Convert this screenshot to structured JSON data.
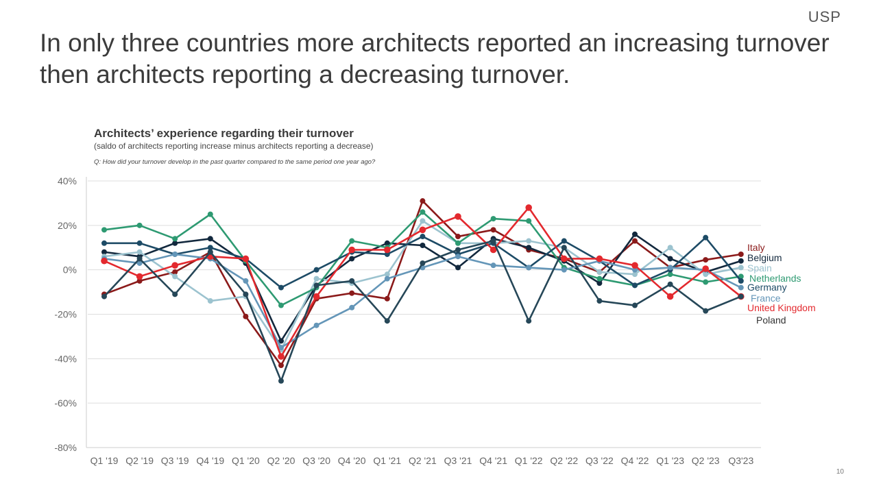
{
  "logo": "USP",
  "headline": "In only three countries more architects reported an increasing turnover then architects reporting a decreasing turnover.",
  "page_number": "10",
  "chart_data": {
    "type": "line",
    "title": "Architects’ experience regarding their turnover",
    "subtitle": "(saldo of architects reporting increase minus architects reporting a decrease)",
    "question": "Q: How did your turnover develop in the past quarter compared to the same period one year ago?",
    "categories": [
      "Q1 '19",
      "Q2 '19",
      "Q3 '19",
      "Q4 '19",
      "Q1 '20",
      "Q2 '20",
      "Q3 '20",
      "Q4 '20",
      "Q1 '21",
      "Q2 '21",
      "Q3 '21",
      "Q4 '21",
      "Q1 '22",
      "Q2 '22",
      "Q3 '22",
      "Q4 '22",
      "Q1 '23",
      "Q2 '23",
      "Q3'23"
    ],
    "ylim": [
      -80,
      40
    ],
    "yticks": [
      40,
      20,
      0,
      -20,
      -40,
      -60,
      -80
    ],
    "ytick_labels": [
      "40%",
      "20%",
      "0%",
      "-20%",
      "-40%",
      "-60%",
      "-80%"
    ],
    "grid": "horizontal",
    "legend": "right, labels at line ends",
    "series": [
      {
        "name": "Italy",
        "color": "#8b1a1a",
        "values": [
          -11,
          -5,
          -1,
          8,
          -21,
          -43,
          -13,
          -10.5,
          -13,
          31,
          15,
          18,
          9,
          5,
          -1,
          13,
          1,
          4.5,
          7
        ]
      },
      {
        "name": "Belgium",
        "color": "#12283d",
        "values": [
          8,
          6,
          12,
          14,
          3,
          -32,
          -7,
          5,
          12,
          11,
          1,
          14,
          10,
          4,
          -6,
          16,
          5,
          -1,
          4
        ]
      },
      {
        "name": "Spain",
        "color": "#9cc3cf",
        "values": [
          6,
          8,
          -3,
          -14,
          -12,
          -36,
          -4,
          -6,
          -2,
          22,
          12,
          12,
          13,
          10,
          -1,
          -2,
          10,
          -2,
          1
        ]
      },
      {
        "name": "Netherlands",
        "color": "#2e9a72",
        "values": [
          18,
          20,
          14,
          25,
          4,
          -16,
          -8,
          13,
          10,
          26,
          12,
          23,
          22,
          1,
          -4,
          -7,
          -2,
          -5.5,
          -3
        ]
      },
      {
        "name": "Germany",
        "color": "#1d4b66",
        "values": [
          12,
          12,
          7,
          10,
          5,
          -8,
          0,
          8,
          7,
          15,
          7,
          12,
          1,
          13,
          4,
          -7,
          0,
          14.5,
          -5
        ]
      },
      {
        "name": "France",
        "color": "#6496b8",
        "values": [
          5,
          3,
          7,
          5,
          -5,
          -35,
          -25,
          -17,
          -4,
          1,
          6,
          2,
          1,
          0,
          4,
          0,
          1,
          0,
          -8
        ]
      },
      {
        "name": "United Kingdom",
        "color": "#e3292e",
        "values": [
          4,
          -3,
          2,
          6,
          5,
          -39,
          -12,
          9,
          9,
          18,
          24,
          9,
          28,
          5,
          5,
          2,
          -12,
          0.5,
          -12
        ]
      },
      {
        "name": "Poland",
        "color": "#264758",
        "values": [
          -12,
          5,
          -11,
          8,
          -11,
          -50,
          -7,
          -5,
          -23,
          3,
          9,
          13,
          -23,
          10,
          -14,
          -16,
          -6.5,
          -18.5,
          -12
        ]
      }
    ],
    "legend_entries": [
      "Italy",
      "Belgium",
      "Spain",
      "Netherlands",
      "Germany",
      "France",
      "United Kingdom",
      "Poland"
    ]
  }
}
